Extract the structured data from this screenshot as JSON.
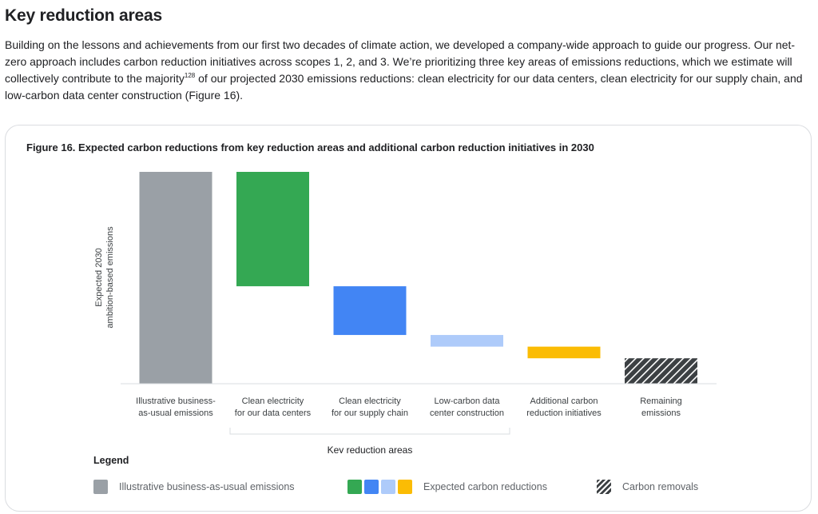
{
  "section": {
    "title": "Key reduction areas",
    "intro_part1": "Building on the lessons and achievements from our first two decades of climate action, we developed a company-wide approach to guide our progress. Our net-zero approach includes carbon reduction initiatives across scopes 1, 2, and 3. We’re prioritizing three key areas of emissions reductions, which we estimate will collectively contribute to the majority",
    "footnote": "128",
    "intro_part2": " of our projected 2030 emissions reductions: clean electricity for our data centers, clean electricity for our supply chain, and low-carbon data center construction (Figure 16)."
  },
  "figure": {
    "title": "Figure 16. Expected carbon reductions from key reduction areas and additional carbon reduction initiatives in 2030"
  },
  "chart_data": {
    "type": "bar",
    "subtype": "waterfall",
    "ylabel_lines": [
      "Expected 2030",
      "ambition-based emissions"
    ],
    "y_ticks_shown": false,
    "ylim": [
      0,
      100
    ],
    "bars": [
      {
        "label_lines": [
          "Illustrative business-",
          "as-usual emissions"
        ],
        "start": 0,
        "end": 100,
        "color": "#9aa0a6",
        "pattern": "solid"
      },
      {
        "label_lines": [
          "Clean electricity",
          "for our data centers"
        ],
        "start": 46,
        "end": 100,
        "color": "#34a853",
        "pattern": "solid"
      },
      {
        "label_lines": [
          "Clean electricity",
          "for our supply chain"
        ],
        "start": 23,
        "end": 46,
        "color": "#4285f4",
        "pattern": "solid"
      },
      {
        "label_lines": [
          "Low-carbon data",
          "center construction"
        ],
        "start": 17.5,
        "end": 23,
        "color": "#aecbfa",
        "pattern": "solid"
      },
      {
        "label_lines": [
          "Additional carbon",
          "reduction initiatives"
        ],
        "start": 12,
        "end": 17.5,
        "color": "#fbbc04",
        "pattern": "solid"
      },
      {
        "label_lines": [
          "Remaining",
          "emissions"
        ],
        "start": 0,
        "end": 12,
        "color": "#3c4043",
        "pattern": "hatch"
      }
    ],
    "bracket": {
      "from_bar": 1,
      "to_bar": 3,
      "label": "Key reduction areas"
    }
  },
  "legend": {
    "title": "Legend",
    "items": [
      {
        "label": "Illustrative business-as-usual emissions",
        "colors": [
          "#9aa0a6"
        ]
      },
      {
        "label": "Expected carbon reductions",
        "colors": [
          "#34a853",
          "#4285f4",
          "#aecbfa",
          "#fbbc04"
        ]
      },
      {
        "label": "Carbon removals",
        "colors": [
          "#3c4043"
        ],
        "pattern": "hatch"
      }
    ]
  }
}
